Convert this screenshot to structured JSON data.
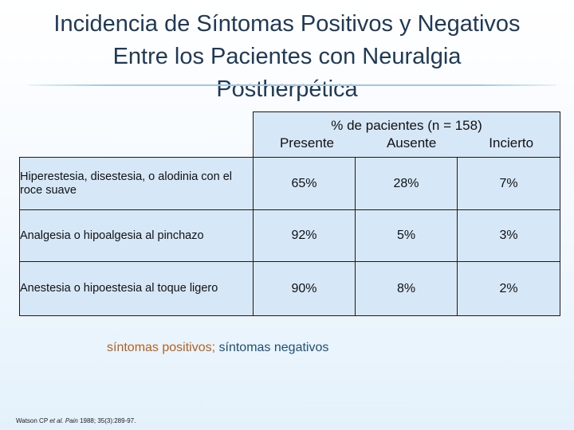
{
  "title": {
    "line1": "Incidencia de Síntomas Positivos y Negativos",
    "line2": "Entre los Pacientes con Neuralgia",
    "line3": "Postherpética"
  },
  "table": {
    "group_header": "% de pacientes (n = 158)",
    "columns": [
      "Presente",
      "Ausente",
      "Incierto"
    ],
    "rows": [
      {
        "label": "Hiperestesia, disestesia, o alodinia con el roce suave",
        "values": [
          "65%",
          "28%",
          "7%"
        ]
      },
      {
        "label": "Analgesia o hipoalgesia al pinchazo",
        "values": [
          "92%",
          "5%",
          "3%"
        ]
      },
      {
        "label": "Anestesia o hipoestesia al toque ligero",
        "values": [
          "90%",
          "8%",
          "2%"
        ]
      }
    ]
  },
  "legend": {
    "positive": "síntomas positivos;",
    "negative": "síntomas negativos"
  },
  "citation": {
    "authors": "Watson CP",
    "etal": "et al.",
    "journal": "Pain",
    "details": "1988; 35(3):289-97."
  },
  "colors": {
    "title": "#1f3a57",
    "cell_fill": "#d6e7f7",
    "positive": "#b1621f",
    "negative": "#1f4e79"
  }
}
